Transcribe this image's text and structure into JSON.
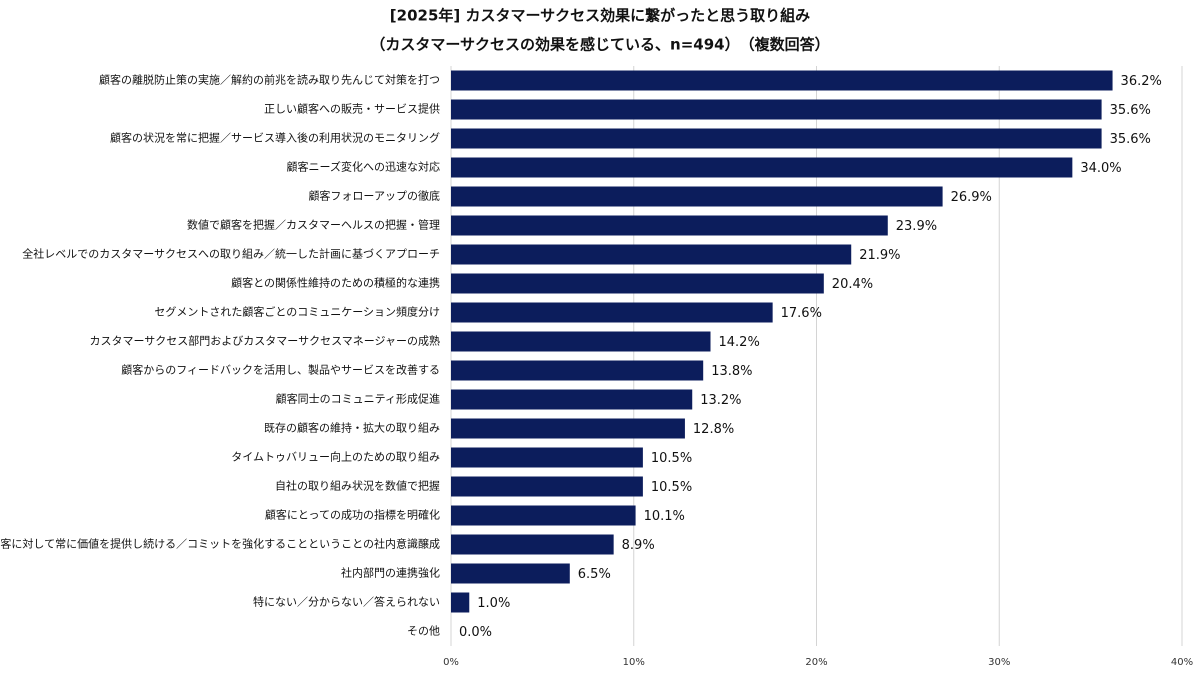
{
  "chart_data": {
    "type": "hbar",
    "title": "[2025年] カスタマーサクセス効果に繋がったと思う取り組み",
    "subtitle": "（カスタマーサクセスの効果を感じている、n=494）　（複数回答）",
    "categories": [
      "顧客の離脱防止策の実施／解約の前兆を読み取り先んじて対策を打つ",
      "正しい顧客への販売・サービス提供",
      "顧客の状況を常に把握／サービス導入後の利用状況のモニタリング",
      "顧客ニーズ変化への迅速な対応",
      "顧客フォローアップの徹底",
      "数値で顧客を把握／カスタマーヘルスの把握・管理",
      "全社レベルでのカスタマーサクセスへの取り組み／統一した計画に基づくアプローチ",
      "顧客との関係性維持のための積極的な連携",
      "セグメントされた顧客ごとのコミュニケーション頻度分け",
      "カスタマーサクセス部門およびカスタマーサクセスマネージャーの成熟",
      "顧客からのフィードバックを活用し、製品やサービスを改善する",
      "顧客同士のコミュニティ形成促進",
      "既存の顧客の維持・拡大の取り組み",
      "タイムトゥバリュー向上のための取り組み",
      "自社の取り組み状況を数値で把握",
      "顧客にとっての成功の指標を明確化",
      "顧客に対して常に価値を提供し続ける／コミットを強化することということの社内意識醸成",
      "社内部門の連携強化",
      "特にない／分からない／答えられない",
      "その他"
    ],
    "values": [
      36.2,
      35.6,
      35.6,
      34.0,
      26.9,
      23.9,
      21.9,
      20.4,
      17.6,
      14.2,
      13.8,
      13.2,
      12.8,
      10.5,
      10.5,
      10.1,
      8.9,
      6.5,
      1.0,
      0.0
    ],
    "value_labels": [
      "36.2%",
      "35.6%",
      "35.6%",
      "34.0%",
      "26.9%",
      "23.9%",
      "21.9%",
      "20.4%",
      "17.6%",
      "14.2%",
      "13.8%",
      "13.2%",
      "12.8%",
      "10.5%",
      "10.5%",
      "10.1%",
      "8.9%",
      "6.5%",
      "1.0%",
      "0.0%"
    ],
    "color": "#0c1d5c",
    "xlim": [
      0,
      40
    ],
    "xticks": [
      {
        "value": 0,
        "label": "0%"
      },
      {
        "value": 10,
        "label": "10%"
      },
      {
        "value": 20,
        "label": "20%"
      },
      {
        "value": 30,
        "label": "30%"
      },
      {
        "value": 40,
        "label": "40%"
      }
    ],
    "grid": true
  }
}
